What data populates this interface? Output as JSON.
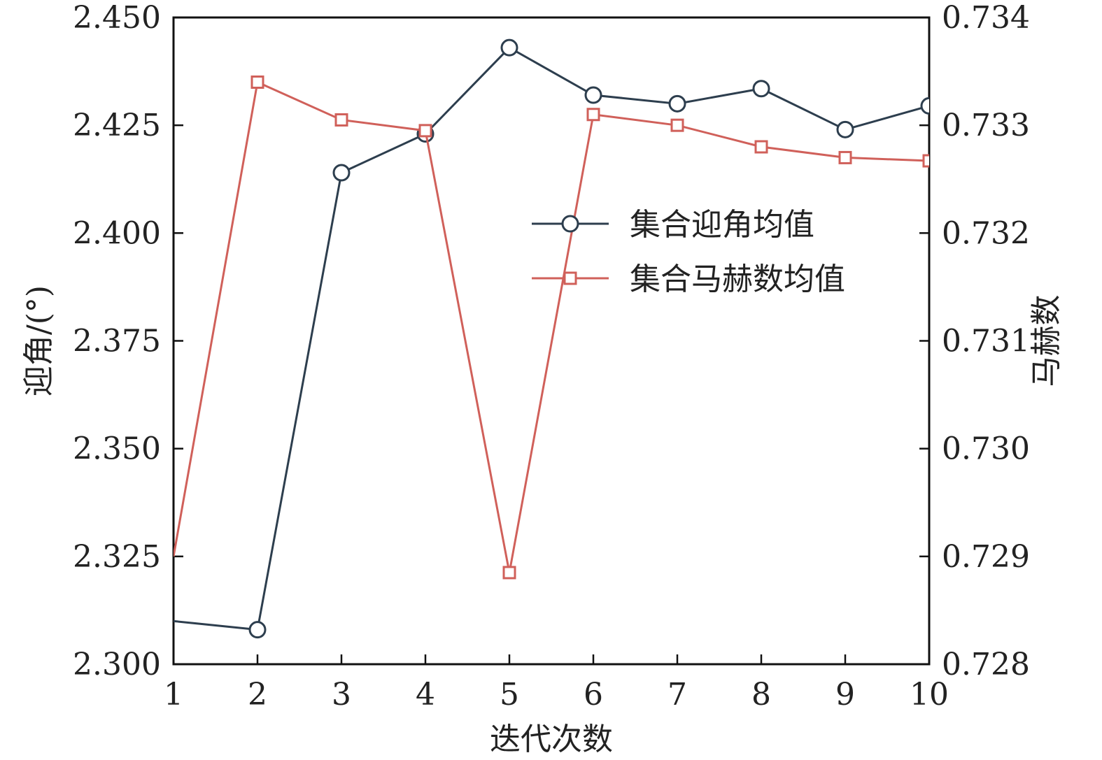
{
  "chart_data": {
    "type": "line",
    "x": [
      1,
      2,
      3,
      4,
      5,
      6,
      7,
      8,
      9,
      10
    ],
    "xlabel": "迭代次数",
    "ylabel_left": "迎角/(°)",
    "ylabel_right": "马赫数",
    "xlim": [
      1,
      10
    ],
    "ylim_left": [
      2.3,
      2.45
    ],
    "ylim_right": [
      0.728,
      0.734
    ],
    "x_ticks": [
      1,
      2,
      3,
      4,
      5,
      6,
      7,
      8,
      9,
      10
    ],
    "x_tick_labels": [
      "1",
      "2",
      "3",
      "4",
      "5",
      "6",
      "7",
      "8",
      "9",
      "10"
    ],
    "y_left_ticks": [
      2.3,
      2.325,
      2.35,
      2.375,
      2.4,
      2.425,
      2.45
    ],
    "y_left_tick_labels": [
      "2.300",
      "2.325",
      "2.350",
      "2.375",
      "2.400",
      "2.425",
      "2.450"
    ],
    "y_right_ticks": [
      0.728,
      0.729,
      0.73,
      0.731,
      0.732,
      0.733,
      0.734
    ],
    "y_right_tick_labels": [
      "0.728",
      "0.729",
      "0.730",
      "0.731",
      "0.732",
      "0.733",
      "0.734"
    ],
    "grid": false,
    "legend_position": "upper-right",
    "series": [
      {
        "name": "集合迎角均值",
        "axis": "left",
        "marker": "circle",
        "color": "#2d3e4e",
        "values": [
          2.31,
          2.308,
          2.414,
          2.423,
          2.443,
          2.432,
          2.43,
          2.4335,
          2.424,
          2.4295
        ]
      },
      {
        "name": "集合马赫数均值",
        "axis": "right",
        "marker": "square",
        "color": "#d0605a",
        "values": [
          0.729,
          0.7334,
          0.73305,
          0.73295,
          0.72885,
          0.7331,
          0.733,
          0.7328,
          0.7327,
          0.73267
        ]
      }
    ]
  }
}
